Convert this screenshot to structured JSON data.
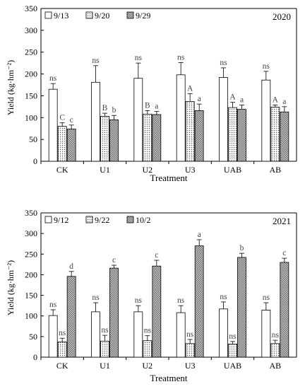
{
  "chart_data": [
    {
      "type": "bar",
      "year_label": "2020",
      "categories": [
        "CK",
        "U1",
        "U2",
        "U3",
        "UAB",
        "AB"
      ],
      "xlabel": "Treatment",
      "ylabel": "Yield (kg·hm⁻²)",
      "ylim": [
        0,
        350
      ],
      "yticks": [
        0,
        50,
        100,
        150,
        200,
        250,
        300,
        350
      ],
      "grid": false,
      "legend_position": "top-left",
      "series": [
        {
          "name": "9/13",
          "pattern": "white",
          "values": [
            165,
            181,
            190,
            198,
            192,
            186
          ],
          "errors": [
            13,
            38,
            35,
            28,
            22,
            20
          ],
          "labels": [
            "ns",
            "ns",
            "ns",
            "ns",
            "ns",
            "ns"
          ]
        },
        {
          "name": "9/20",
          "pattern": "dots",
          "values": [
            80,
            103,
            108,
            137,
            123,
            124
          ],
          "errors": [
            8,
            7,
            8,
            18,
            12,
            5
          ],
          "labels": [
            "C",
            "B",
            "B",
            "A",
            "A",
            "A"
          ]
        },
        {
          "name": "9/29",
          "pattern": "gray",
          "values": [
            74,
            95,
            107,
            116,
            119,
            113
          ],
          "errors": [
            9,
            10,
            7,
            15,
            10,
            12
          ],
          "labels": [
            "c",
            "b",
            "a",
            "a",
            "a",
            "a"
          ]
        }
      ]
    },
    {
      "type": "bar",
      "year_label": "2021",
      "categories": [
        "CK",
        "U1",
        "U2",
        "U3",
        "UAB",
        "AB"
      ],
      "xlabel": "Treatment",
      "ylabel": "Yield (kg·hm⁻²)",
      "ylim": [
        0,
        350
      ],
      "yticks": [
        0,
        50,
        100,
        150,
        200,
        250,
        300,
        350
      ],
      "grid": false,
      "legend_position": "top-left",
      "series": [
        {
          "name": "9/12",
          "pattern": "white",
          "values": [
            101,
            110,
            110,
            108,
            117,
            114
          ],
          "errors": [
            14,
            22,
            15,
            17,
            17,
            18
          ],
          "labels": [
            "ns",
            "ns",
            "ns",
            "ns",
            "ns",
            "ns"
          ]
        },
        {
          "name": "9/22",
          "pattern": "dots",
          "values": [
            37,
            39,
            40,
            33,
            32,
            33
          ],
          "errors": [
            9,
            14,
            12,
            10,
            6,
            8
          ],
          "labels": [
            "ns",
            "ns",
            "ns",
            "ns",
            "ns",
            "ns"
          ]
        },
        {
          "name": "10/2",
          "pattern": "gray",
          "values": [
            196,
            216,
            221,
            270,
            242,
            230
          ],
          "errors": [
            12,
            7,
            14,
            15,
            10,
            10
          ],
          "labels": [
            "d",
            "c",
            "c",
            "a",
            "b",
            "c"
          ]
        }
      ]
    }
  ]
}
